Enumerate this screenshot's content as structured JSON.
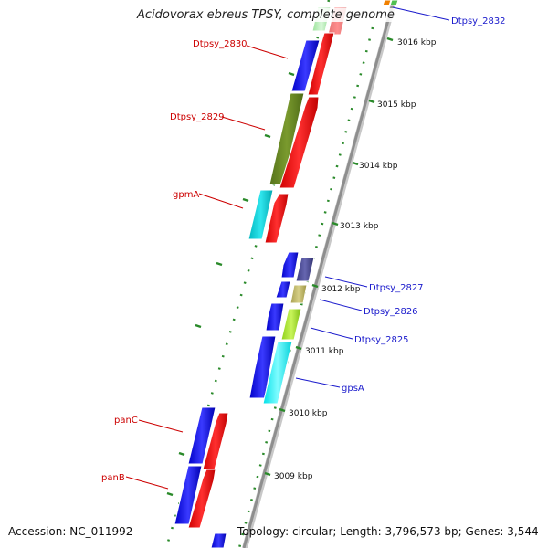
{
  "title": "Acidovorax ebreus TPSY, complete genome",
  "accession": "Accession: NC_011992",
  "topology_info": "Topology: circular; Length: 3,796,573 bp; Genes: 3,544",
  "colors": {
    "plus_label": "#1a1acc",
    "minus_label": "#cc0000",
    "backbone": "#9a9a9a",
    "tick": "#2a8a2a"
  },
  "kbp_labels": [
    "3016 kbp",
    "3015 kbp",
    "3014 kbp",
    "3013 kbp",
    "3012 kbp",
    "3011 kbp",
    "3010 kbp",
    "3009 kbp"
  ],
  "gene_labels": {
    "dtpsy_2832": "Dtpsy_2832",
    "dtpsy_2830": "Dtpsy_2830",
    "dtpsy_2829": "Dtpsy_2829",
    "gpma": "gpmA",
    "dtpsy_2827": "Dtpsy_2827",
    "dtpsy_2826": "Dtpsy_2826",
    "dtpsy_2825": "Dtpsy_2825",
    "gpsa": "gpsA",
    "panc": "panC",
    "panb": "panB"
  }
}
